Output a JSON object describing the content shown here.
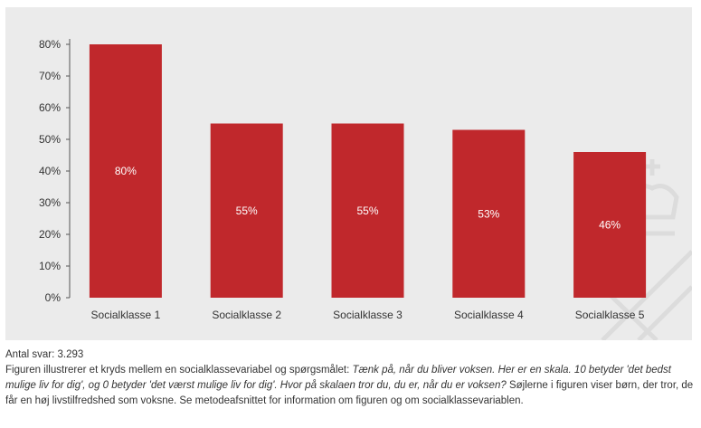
{
  "chart_data": {
    "type": "bar",
    "title": "",
    "xlabel": "",
    "ylabel": "",
    "categories": [
      "Socialklasse 1",
      "Socialklasse 2",
      "Socialklasse 3",
      "Socialklasse 4",
      "Socialklasse 5"
    ],
    "values": [
      80,
      55,
      55,
      53,
      46
    ],
    "value_labels": [
      "80%",
      "55%",
      "55%",
      "53%",
      "46%"
    ],
    "ylim": [
      0,
      80
    ],
    "yticks": [
      0,
      10,
      20,
      30,
      40,
      50,
      60,
      70,
      80
    ],
    "ytick_labels": [
      "0%",
      "10%",
      "20%",
      "30%",
      "40%",
      "50%",
      "60%",
      "70%",
      "80%"
    ],
    "grid": false,
    "bar_color": "#c0282c",
    "background_color": "#ebebeb"
  },
  "caption": {
    "count": "Antal svar: 3.293",
    "text_intro": "Figuren illustrerer et kryds mellem en socialklassevariabel og spørgsmålet: ",
    "text_question": "Tænk på, når du bliver voksen. Her er en skala. 10 betyder 'det bedst mulige liv for dig', og 0 betyder 'det værst mulige liv for dig'. Hvor på skalaen tror du, du er, når du er voksen?",
    "text_outro": "  Søjlerne i figuren viser børn, der tror, de får en høj livstilfredshed som voksne. Se metodeafsnittet for information om figuren og om socialklassevariablen."
  }
}
